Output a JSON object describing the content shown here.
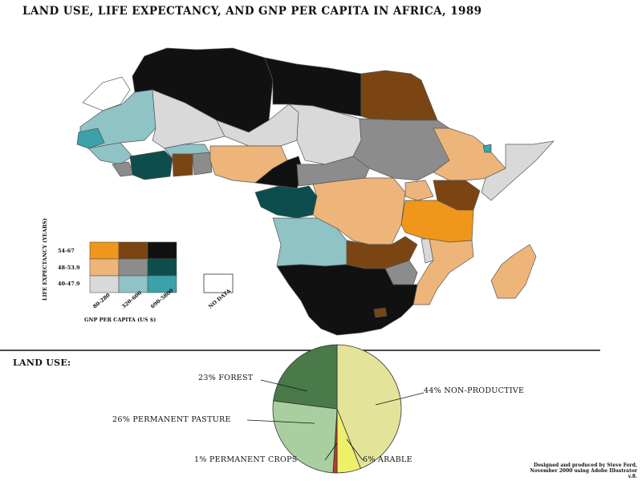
{
  "title": "LAND USE, LIFE EXPECTANCY, AND GNP PER CAPITA IN AFRICA, 1989",
  "colors": {
    "low_gnp_high_le": "#F0961A",
    "mid_gnp_high_le": "#7A4513",
    "high_gnp_high_le": "#111111",
    "low_gnp_mid_le": "#EDB57A",
    "mid_gnp_mid_le": "#8C8C8C",
    "high_gnp_mid_le": "#0E4D4D",
    "low_gnp_low_le": "#D9D9D9",
    "mid_gnp_low_le": "#8FC3C6",
    "high_gnp_low_le": "#3AA2A8",
    "no_data": "#FFFFFF",
    "forest": "#4A7A4A",
    "pasture": "#A9CFA0",
    "crops": "#C0392B",
    "arable": "#EEF06A",
    "non_productive": "#E4E39A"
  },
  "legend": {
    "y_axis_title": "LIFE EXPECTANCY (YEARS)",
    "x_axis_title": "GNP PER CAPITA (US $)",
    "rows": [
      "54-67",
      "48-53.9",
      "40-47.9"
    ],
    "columns": [
      "80-280",
      "320-600",
      "690-5800"
    ],
    "no_data_label": "NO DATA"
  },
  "land_use": {
    "heading": "LAND USE:",
    "slices": [
      {
        "label": "44% NON-PRODUCTIVE",
        "value": 44
      },
      {
        "label": "6% ARABLE",
        "value": 6
      },
      {
        "label": "1% PERMANENT CROPS",
        "value": 1
      },
      {
        "label": "26% PERMANENT PASTURE",
        "value": 26
      },
      {
        "label": "23% FOREST",
        "value": 23
      }
    ]
  },
  "credit": {
    "line1": "Designed and produced by Steve Ford,",
    "line2": "November 2000 using Adobe Illustrator",
    "line3": "v.8."
  }
}
